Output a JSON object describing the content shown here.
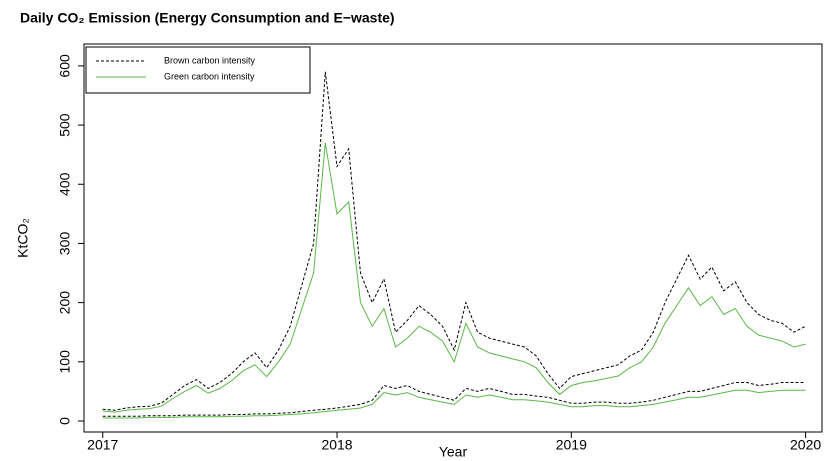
{
  "chart_data": {
    "type": "line",
    "title": "Daily CO₂ Emission (Energy Consumption and E−waste)",
    "xlabel": "Year",
    "ylabel": "KtCO₂",
    "x": [
      2017,
      2017.05,
      2017.1,
      2017.15,
      2017.2,
      2017.25,
      2017.3,
      2017.35,
      2017.4,
      2017.45,
      2017.5,
      2017.55,
      2017.6,
      2017.65,
      2017.7,
      2017.75,
      2017.8,
      2017.85,
      2017.9,
      2017.95,
      2018,
      2018.05,
      2018.1,
      2018.15,
      2018.2,
      2018.25,
      2018.3,
      2018.35,
      2018.4,
      2018.45,
      2018.5,
      2018.55,
      2018.6,
      2018.65,
      2018.7,
      2018.75,
      2018.8,
      2018.85,
      2018.9,
      2018.95,
      2019,
      2019.05,
      2019.1,
      2019.15,
      2019.2,
      2019.25,
      2019.3,
      2019.35,
      2019.4,
      2019.45,
      2019.5,
      2019.55,
      2019.6,
      2019.65,
      2019.7,
      2019.75,
      2019.8,
      2019.85,
      2019.9,
      2019.95,
      2020
    ],
    "series": [
      {
        "name": "Brown carbon intensity",
        "color": "#000000",
        "dashed": true,
        "values": [
          20,
          18,
          22,
          24,
          25,
          30,
          45,
          60,
          70,
          55,
          65,
          80,
          100,
          115,
          90,
          120,
          160,
          230,
          300,
          590,
          430,
          460,
          250,
          200,
          240,
          150,
          170,
          195,
          180,
          160,
          120,
          200,
          150,
          140,
          135,
          130,
          125,
          110,
          80,
          55,
          75,
          80,
          85,
          90,
          95,
          110,
          120,
          150,
          200,
          240,
          280,
          240,
          260,
          220,
          235,
          200,
          180,
          170,
          165,
          150,
          160
        ]
      },
      {
        "name": "Green carbon intensity",
        "color": "#5ab947",
        "dashed": false,
        "values": [
          17,
          15,
          18,
          20,
          21,
          25,
          38,
          50,
          60,
          47,
          55,
          68,
          85,
          95,
          75,
          100,
          130,
          190,
          250,
          470,
          350,
          370,
          200,
          160,
          190,
          125,
          140,
          160,
          150,
          135,
          100,
          165,
          125,
          115,
          110,
          105,
          100,
          90,
          65,
          45,
          60,
          65,
          68,
          72,
          76,
          90,
          100,
          125,
          165,
          195,
          225,
          195,
          210,
          180,
          190,
          160,
          145,
          140,
          135,
          125,
          130
        ]
      },
      {
        "name": "Brown carbon intensity",
        "color": "#000000",
        "dashed": true,
        "values": [
          8,
          8,
          8,
          8,
          9,
          9,
          9,
          10,
          10,
          10,
          10,
          11,
          11,
          12,
          12,
          13,
          14,
          16,
          18,
          20,
          22,
          25,
          28,
          35,
          60,
          55,
          60,
          50,
          45,
          40,
          35,
          55,
          50,
          55,
          50,
          45,
          45,
          42,
          40,
          35,
          30,
          30,
          32,
          32,
          30,
          30,
          32,
          35,
          40,
          45,
          50,
          50,
          55,
          60,
          65,
          65,
          60,
          62,
          65,
          65,
          65
        ]
      },
      {
        "name": "Green carbon intensity",
        "color": "#5ab947",
        "dashed": false,
        "values": [
          5,
          5,
          5,
          5,
          6,
          6,
          6,
          7,
          7,
          7,
          7,
          8,
          8,
          9,
          9,
          10,
          11,
          12,
          14,
          16,
          18,
          20,
          22,
          28,
          48,
          44,
          48,
          40,
          36,
          32,
          28,
          44,
          40,
          44,
          40,
          36,
          36,
          34,
          32,
          28,
          24,
          24,
          26,
          26,
          24,
          24,
          26,
          28,
          32,
          36,
          40,
          40,
          44,
          48,
          52,
          52,
          48,
          50,
          52,
          52,
          52
        ]
      }
    ],
    "xlim": [
      2016.92,
      2020.07
    ],
    "xticks": [
      2017,
      2018,
      2019,
      2020
    ],
    "ylim": [
      -18.6,
      637
    ],
    "yticks": [
      0,
      100,
      200,
      300,
      400,
      500,
      600
    ],
    "legend": "top-left"
  }
}
